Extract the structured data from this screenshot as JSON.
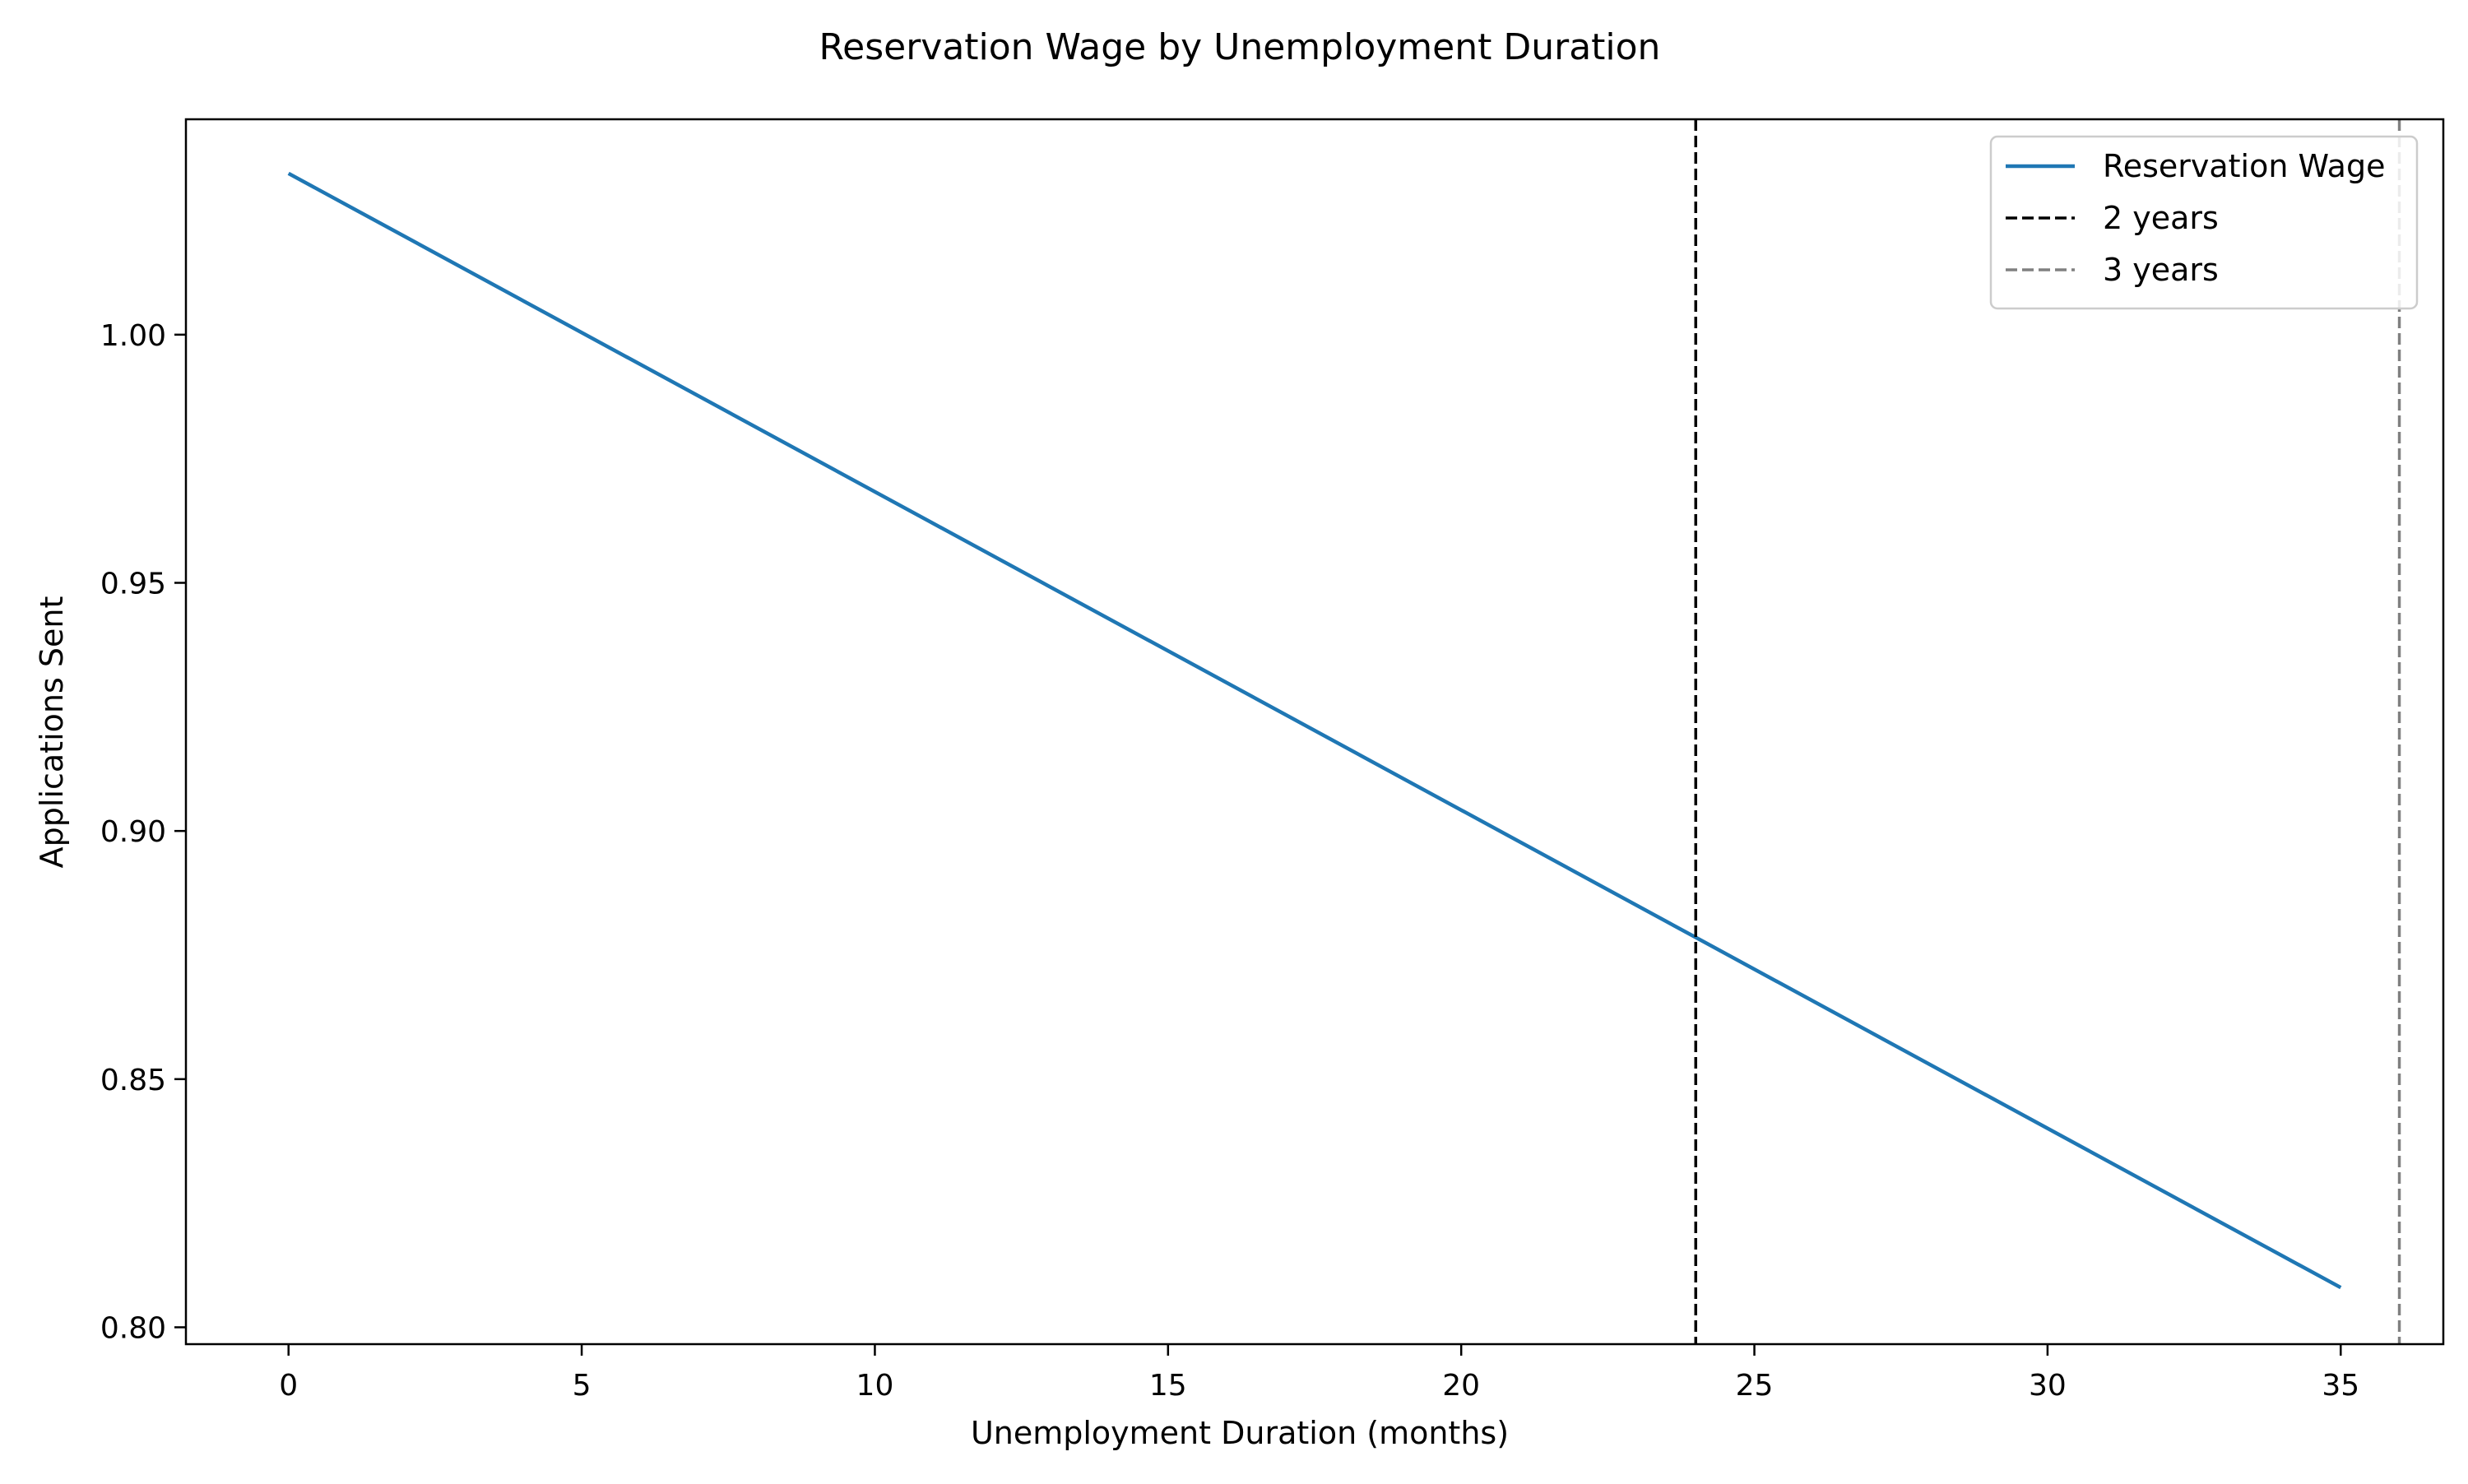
{
  "chart_data": {
    "type": "line",
    "title": "Reservation Wage by Unemployment Duration",
    "xlabel": "Unemployment Duration (months)",
    "ylabel": "Applications Sent",
    "xlim": [
      -1.75,
      36.75
    ],
    "ylim": [
      0.7966,
      1.0434
    ],
    "x_ticks": [
      0,
      5,
      10,
      15,
      20,
      25,
      30,
      35
    ],
    "y_ticks": [
      0.8,
      0.85,
      0.9,
      0.95,
      1.0
    ],
    "grid": false,
    "legend_position": "top-right",
    "series": [
      {
        "name": "Reservation Wage",
        "color": "#1f77b4",
        "x": [
          0,
          35
        ],
        "y": [
          1.0325,
          0.808
        ]
      }
    ],
    "vlines": [
      {
        "name": "2 years",
        "x": 24,
        "color": "#000000",
        "style": "dashed"
      },
      {
        "name": "3 years",
        "x": 36,
        "color": "#808080",
        "style": "dashed"
      }
    ]
  }
}
